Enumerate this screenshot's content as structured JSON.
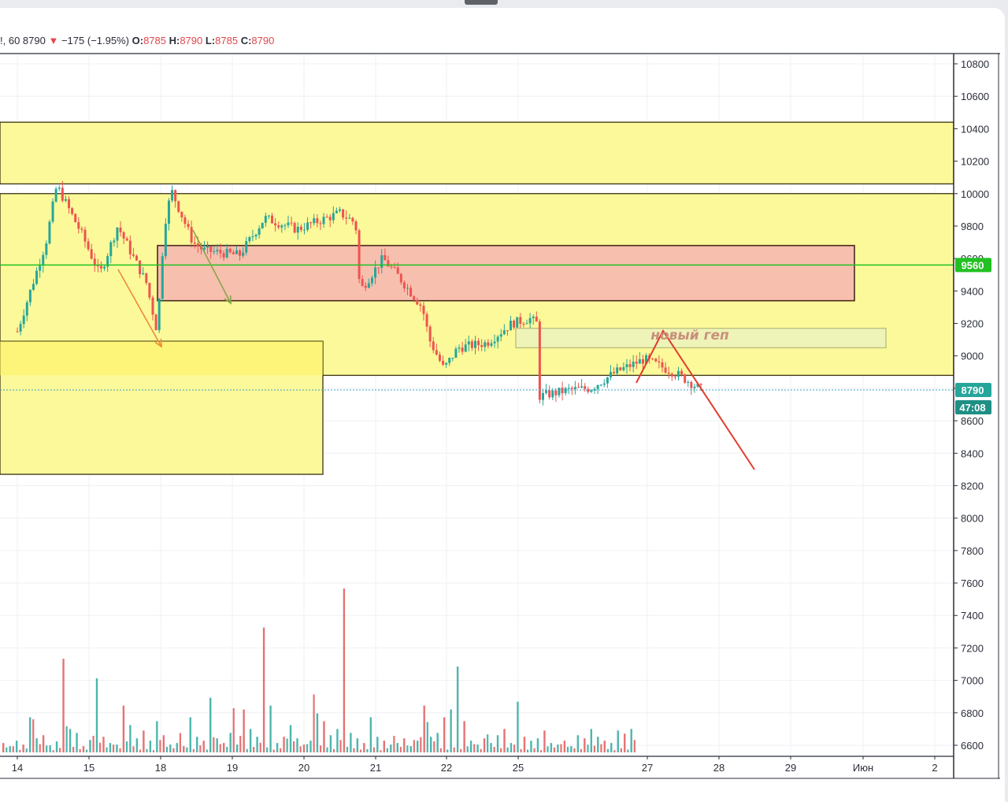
{
  "legend": {
    "symbol_fragment": "!, 60",
    "last": "8790",
    "arrow": "▼",
    "change": "−175 (−1.95%)",
    "o_label": "O:",
    "o": "8785",
    "h_label": "H:",
    "h": "8790",
    "l_label": "L:",
    "l": "8785",
    "c_label": "C:",
    "c": "8790"
  },
  "price_badge": "8790",
  "timer_badge": "47:08",
  "level_badge": "9560",
  "annotation": "новый геп",
  "colors": {
    "up": "#26a69a",
    "down": "#ef5350",
    "zone_yellow": "#fbf99a",
    "zone_red": "#f7bfae",
    "level_green": "#22c022",
    "badge_teal": "#26a69a",
    "arrow_red": "#e23b2e"
  },
  "chart_data": {
    "type": "candlestick",
    "timeframe": "60",
    "xlabels": [
      "14",
      "15",
      "18",
      "19",
      "20",
      "21",
      "22",
      "25",
      "27",
      "28",
      "29",
      "Июн",
      "2"
    ],
    "yticks": [
      10800,
      10600,
      10400,
      10200,
      10000,
      9800,
      9600,
      9400,
      9200,
      9000,
      8800,
      8600,
      8400,
      8200,
      8000,
      7800,
      7600,
      7400,
      7200,
      7000,
      6800,
      6600
    ],
    "ylim": [
      6560,
      10840
    ],
    "last_price": 8790,
    "horizontal_level": 9560,
    "zones": [
      {
        "kind": "yellow",
        "from": 10060,
        "to": 10440
      },
      {
        "kind": "yellow",
        "from": 8880,
        "to": 10000
      },
      {
        "kind": "yellow",
        "from": 8270,
        "to": 9090
      },
      {
        "kind": "red",
        "from": 9340,
        "to": 9680
      },
      {
        "kind": "gap",
        "from": 9050,
        "to": 9170
      }
    ],
    "price_path": [
      [
        14,
        9150
      ],
      [
        14.4,
        9700
      ],
      [
        14.55,
        10050
      ],
      [
        14.9,
        9750
      ],
      [
        15.15,
        9500
      ],
      [
        15.4,
        9800
      ],
      [
        15.8,
        9450
      ],
      [
        15.95,
        9150
      ],
      [
        16.05,
        9800
      ],
      [
        16.15,
        10020
      ],
      [
        16.45,
        9700
      ],
      [
        16.6,
        9650
      ],
      [
        17.1,
        9620
      ],
      [
        17.45,
        9850
      ],
      [
        17.9,
        9780
      ],
      [
        18.5,
        9880
      ],
      [
        18.72,
        9820
      ],
      [
        18.78,
        9400
      ],
      [
        19.1,
        9600
      ],
      [
        19.3,
        9500
      ],
      [
        19.65,
        9300
      ],
      [
        19.75,
        9100
      ],
      [
        19.95,
        8920
      ],
      [
        20.15,
        9050
      ],
      [
        20.55,
        9080
      ],
      [
        20.9,
        9200
      ],
      [
        21.15,
        9230
      ],
      [
        21.25,
        9200
      ],
      [
        21.28,
        8750
      ],
      [
        21.7,
        8790
      ],
      [
        22.0,
        8800
      ],
      [
        22.35,
        8900
      ],
      [
        22.75,
        8980
      ],
      [
        23.2,
        8890
      ],
      [
        23.55,
        8790
      ]
    ],
    "volume": [
      12,
      8,
      15,
      10,
      45,
      18,
      22,
      9,
      14,
      120,
      30,
      25,
      8,
      16,
      95,
      20,
      12,
      10,
      60,
      35,
      18,
      28,
      15,
      40,
      22,
      10,
      12,
      8,
      45,
      20,
      15,
      70,
      18,
      12,
      25,
      10,
      55,
      30,
      20,
      160,
      60,
      12,
      20,
      35,
      18,
      10,
      15,
      50,
      40,
      22,
      30,
      210,
      25,
      18,
      12,
      45,
      20,
      15,
      10,
      12,
      18,
      8,
      15,
      60,
      20,
      25,
      45,
      55,
      110,
      40,
      15,
      10,
      18,
      12,
      22,
      30,
      12,
      65,
      20,
      15,
      18,
      28,
      12,
      10,
      15,
      8,
      22,
      18,
      30,
      20,
      15,
      12,
      28,
      24,
      30
    ]
  }
}
